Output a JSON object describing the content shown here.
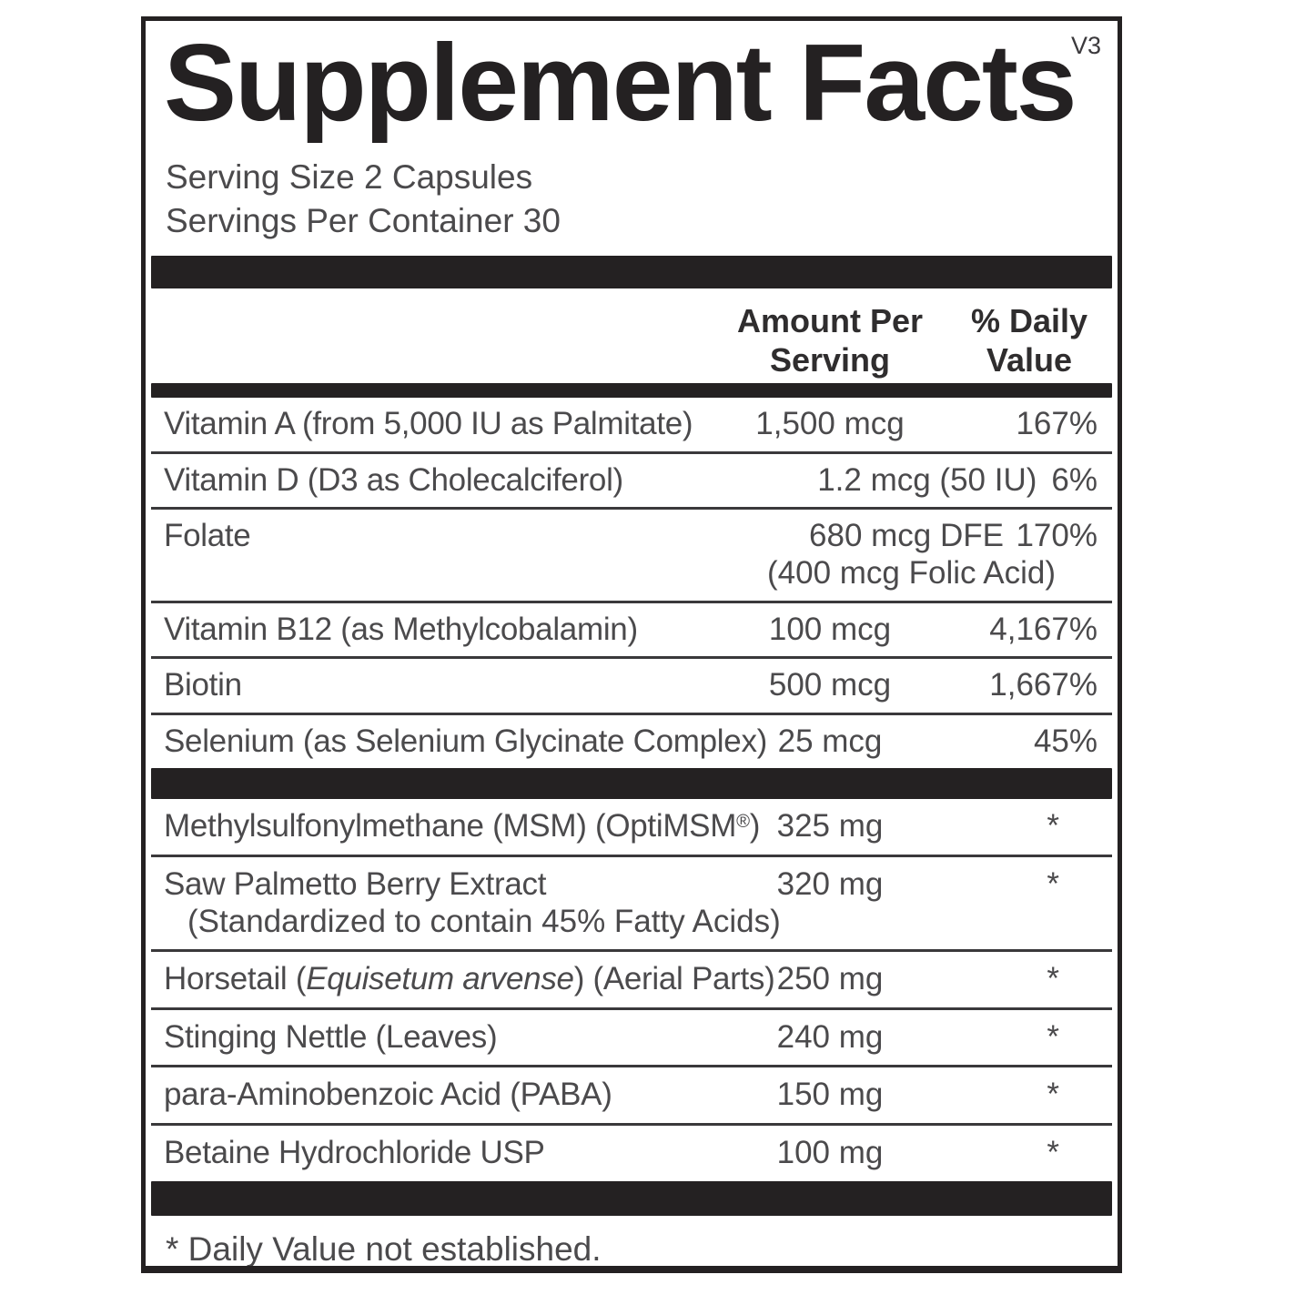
{
  "label": {
    "title": "Supplement Facts",
    "version": "V3",
    "serving_size": "Serving Size 2 Capsules",
    "servings_per_container": "Servings Per Container 30",
    "header": {
      "amount_line1": "Amount Per",
      "amount_line2": "Serving",
      "dv_line1": "% Daily",
      "dv_line2": "Value"
    },
    "footnote": "* Daily Value not established.",
    "colors": {
      "ink": "#242122",
      "body_text": "#4b4a4c",
      "divider": "#3a393b",
      "background": "#ffffff"
    },
    "sections": [
      {
        "rows": [
          {
            "name": "Vitamin A (from 5,000 IU as Palmitate)",
            "amount": "1,500 mcg",
            "dv": "167%"
          },
          {
            "name": "Vitamin D (D3 as Cholecalciferol)",
            "variant": "combined",
            "amount": "1.2 mcg (50 IU)",
            "dv": "6%"
          },
          {
            "name": "Folate",
            "variant": "folate",
            "amount": "680 mcg DFE",
            "dv": "170%",
            "sub": "(400 mcg Folic Acid)",
            "sub_align": "right"
          },
          {
            "name": "Vitamin B12 (as Methylcobalamin)",
            "amount": "100 mcg",
            "dv": "4,167%"
          },
          {
            "name": "Biotin",
            "amount": "500 mcg",
            "dv": "1,667%"
          },
          {
            "name": "Selenium (as Selenium Glycinate Complex)",
            "amount": "25 mcg",
            "dv": "45%"
          }
        ]
      },
      {
        "rows": [
          {
            "name_parts": [
              {
                "text": "Methylsulfonylmethane (MSM) (OptiMSM"
              },
              {
                "text": "®",
                "style": "sup"
              },
              {
                "text": ")"
              }
            ],
            "amount": "325 mg",
            "dv": "*"
          },
          {
            "name": "Saw Palmetto Berry Extract",
            "amount": "320 mg",
            "dv": "*",
            "sub": "(Standardized to contain 45% Fatty Acids)",
            "sub_align": "indent"
          },
          {
            "name_parts": [
              {
                "text": "Horsetail ("
              },
              {
                "text": "Equisetum arvense",
                "style": "italic"
              },
              {
                "text": ") (Aerial Parts)"
              }
            ],
            "amount": "250 mg",
            "dv": "*"
          },
          {
            "name": "Stinging Nettle (Leaves)",
            "amount": "240 mg",
            "dv": "*"
          },
          {
            "name": "para-Aminobenzoic Acid (PABA)",
            "amount": "150 mg",
            "dv": "*"
          },
          {
            "name": "Betaine Hydrochloride USP",
            "amount": "100 mg",
            "dv": "*"
          }
        ]
      }
    ]
  }
}
